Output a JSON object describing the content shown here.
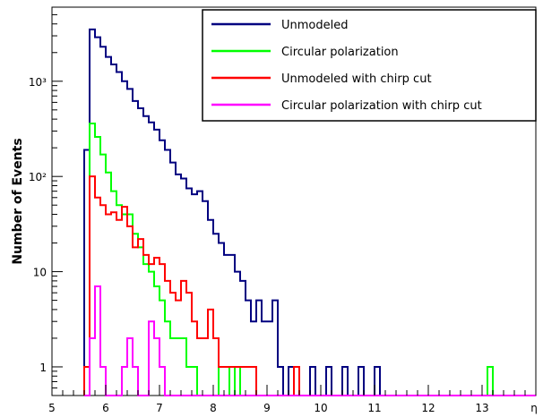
{
  "chart_data": {
    "type": "line",
    "style": "step-histogram",
    "xlabel": "η",
    "ylabel": "Number of Events",
    "xlim": [
      5,
      14
    ],
    "ylim": [
      0.5,
      6000
    ],
    "y_scale": "log",
    "grid": false,
    "legend_placement": "top-right",
    "x_ticks": [
      "5",
      "6",
      "7",
      "8",
      "9",
      "10",
      "11",
      "12",
      "13"
    ],
    "y_ticks": [
      {
        "value": 1,
        "label": "1"
      },
      {
        "value": 10,
        "label": "10"
      },
      {
        "value": 100,
        "label": "10²"
      },
      {
        "value": 1000,
        "label": "10³"
      }
    ],
    "bin_start": 5.6,
    "bin_width": 0.1,
    "series": [
      {
        "name": "Unmodeled",
        "color": "#000080",
        "values": [
          190,
          3500,
          2900,
          2300,
          1800,
          1500,
          1250,
          1000,
          830,
          620,
          520,
          430,
          370,
          310,
          240,
          190,
          140,
          105,
          95,
          75,
          65,
          70,
          55,
          35,
          25,
          20,
          15,
          15,
          10,
          8,
          5,
          3,
          5,
          3,
          3,
          5,
          1,
          0,
          1,
          0,
          0,
          0,
          1,
          0,
          0,
          1,
          0,
          0,
          1,
          0,
          0,
          1,
          0,
          0,
          1,
          0,
          0,
          0,
          0,
          0,
          0,
          0,
          0,
          0,
          0,
          0,
          0,
          0,
          0,
          0,
          0,
          0,
          0,
          0,
          0,
          1,
          0,
          0,
          0,
          0
        ]
      },
      {
        "name": "Circular polarization",
        "color": "#00ff00",
        "values": [
          1,
          360,
          260,
          170,
          110,
          70,
          50,
          40,
          40,
          25,
          18,
          12,
          10,
          7,
          5,
          3,
          2,
          2,
          2,
          1,
          1,
          0,
          0,
          0,
          0,
          1,
          1,
          0,
          1,
          0,
          0,
          0,
          0,
          0,
          0,
          0,
          0,
          0,
          0,
          0,
          0,
          0,
          0,
          0,
          0,
          0,
          0,
          0,
          0,
          0,
          0,
          0,
          0,
          0,
          0,
          0,
          0,
          0,
          0,
          0,
          0,
          0,
          0,
          0,
          0,
          0,
          0,
          0,
          0,
          0,
          0,
          0,
          0,
          0,
          0,
          1,
          0,
          0,
          0,
          0
        ]
      },
      {
        "name": "Unmodeled with chirp cut",
        "color": "#ff0000",
        "values": [
          1,
          100,
          60,
          50,
          40,
          42,
          35,
          48,
          30,
          18,
          22,
          15,
          12,
          14,
          12,
          8,
          6,
          5,
          8,
          6,
          3,
          2,
          2,
          4,
          2,
          1,
          1,
          1,
          1,
          1,
          1,
          1,
          0,
          0,
          0,
          0,
          0,
          0,
          0,
          1,
          0,
          0,
          0,
          0,
          0,
          0,
          0,
          0,
          0,
          0,
          0,
          0,
          0,
          0,
          0,
          0,
          0,
          0,
          0,
          0,
          0,
          0,
          0,
          0,
          0,
          0,
          0,
          0,
          0,
          0,
          0,
          0,
          0,
          0,
          0,
          0,
          0,
          0,
          0,
          0
        ]
      },
      {
        "name": "Circular polarization with chirp cut",
        "color": "#ff00ff",
        "values": [
          0,
          2,
          7,
          1,
          0,
          0,
          0,
          1,
          2,
          1,
          0,
          0,
          3,
          2,
          1,
          0,
          0,
          0,
          0,
          0,
          0,
          0,
          0,
          0,
          0,
          0,
          0,
          0,
          0,
          0,
          0,
          0,
          0,
          0,
          0,
          0,
          0,
          0,
          0,
          0,
          0,
          0,
          0,
          0,
          0,
          0,
          0,
          0,
          0,
          0,
          0,
          0,
          0,
          0,
          0,
          0,
          0,
          0,
          0,
          0,
          0,
          0,
          0,
          0,
          0,
          0,
          0,
          0,
          0,
          0,
          0,
          0,
          0,
          0,
          0,
          0,
          0,
          0,
          0,
          0
        ]
      }
    ]
  }
}
